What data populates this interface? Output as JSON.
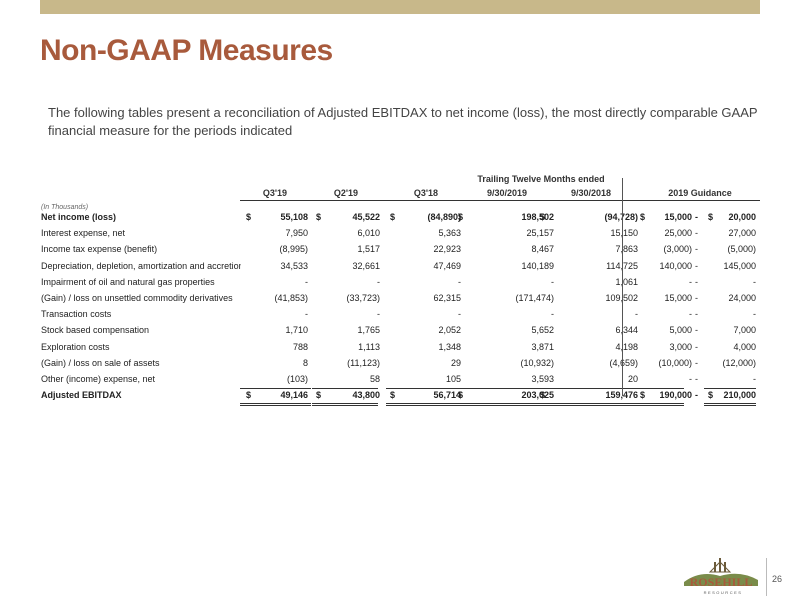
{
  "header": {
    "title": "Non-GAAP Measures"
  },
  "intro": "The following tables present a reconciliation of Adjusted EBITDAX to net income (loss), the most directly comparable GAAP financial measure for the periods indicated",
  "table": {
    "group_header": "Trailing Twelve Months ended",
    "columns": [
      "Q3'19",
      "Q2'19",
      "Q3'18",
      "9/30/2019",
      "9/30/2018",
      "2019 Guidance"
    ],
    "units_label": "(In Thousands)",
    "rows": [
      {
        "label": "Net income (loss)",
        "bold": true,
        "dollar": true,
        "values": [
          "55,108",
          "45,522",
          "(84,890)",
          "198,502",
          "(94,728)"
        ],
        "guidance_low": "15,000",
        "guidance_high": "20,000"
      },
      {
        "label": "Interest expense, net",
        "values": [
          "7,950",
          "6,010",
          "5,363",
          "25,157",
          "15,150"
        ],
        "guidance_low": "25,000",
        "guidance_high": "27,000"
      },
      {
        "label": "Income tax expense (benefit)",
        "values": [
          "(8,995)",
          "1,517",
          "22,923",
          "8,467",
          "7,863"
        ],
        "guidance_low": "(3,000)",
        "guidance_high": "(5,000)"
      },
      {
        "label": "Depreciation, depletion, amortization and accretion",
        "values": [
          "34,533",
          "32,661",
          "47,469",
          "140,189",
          "114,725"
        ],
        "guidance_low": "140,000",
        "guidance_high": "145,000"
      },
      {
        "label": "Impairment of oil and natural gas properties",
        "values": [
          "-",
          "-",
          "-",
          "-",
          "1,061"
        ],
        "guidance_low": "-",
        "guidance_high": "-"
      },
      {
        "label": "(Gain) / loss on unsettled commodity derivatives",
        "values": [
          "(41,853)",
          "(33,723)",
          "62,315",
          "(171,474)",
          "109,502"
        ],
        "guidance_low": "15,000",
        "guidance_high": "24,000"
      },
      {
        "label": "Transaction costs",
        "values": [
          "-",
          "-",
          "-",
          "-",
          "-"
        ],
        "guidance_low": "-",
        "guidance_high": "-"
      },
      {
        "label": "Stock based compensation",
        "values": [
          "1,710",
          "1,765",
          "2,052",
          "5,652",
          "6,344"
        ],
        "guidance_low": "5,000",
        "guidance_high": "7,000"
      },
      {
        "label": "Exploration costs",
        "values": [
          "788",
          "1,113",
          "1,348",
          "3,871",
          "4,198"
        ],
        "guidance_low": "3,000",
        "guidance_high": "4,000"
      },
      {
        "label": "(Gain) / loss on sale of assets",
        "values": [
          "8",
          "(11,123)",
          "29",
          "(10,932)",
          "(4,659)"
        ],
        "guidance_low": "(10,000)",
        "guidance_high": "(12,000)"
      },
      {
        "label": "Other (income) expense, net",
        "values": [
          "(103)",
          "58",
          "105",
          "3,593",
          "20"
        ],
        "guidance_low": "-",
        "guidance_high": "-"
      },
      {
        "label": "Adjusted EBITDAX",
        "bold": true,
        "dollar": true,
        "values": [
          "49,146",
          "43,800",
          "56,714",
          "203,025",
          "159,476"
        ],
        "guidance_low": "190,000",
        "guidance_high": "210,000"
      }
    ]
  },
  "logo": {
    "text": "ROSEHILL",
    "subtext": "RESOURCES"
  },
  "page_number": "26"
}
